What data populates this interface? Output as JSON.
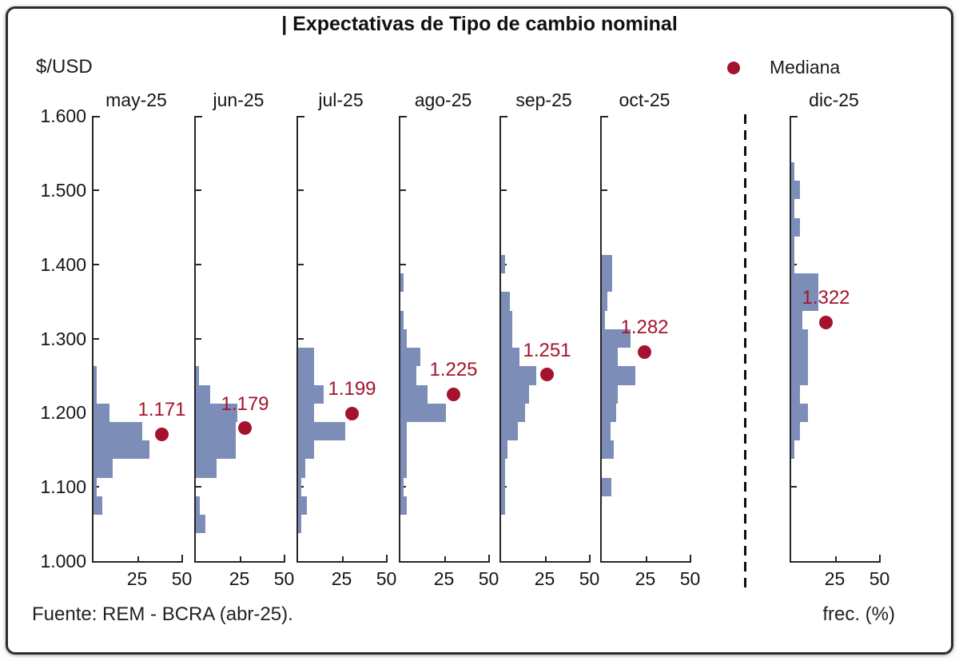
{
  "colors": {
    "bar": "#7C8DB8",
    "median": "#A5122E",
    "axis": "#262626",
    "text": "#161616"
  },
  "chart_data": {
    "type": "bar",
    "subtype": "horizontal-histogram-small-multiples",
    "title": "| Expectativas de Tipo de cambio nominal",
    "y_unit": "$/USD",
    "x_unit": "frec. (%)",
    "source": "Fuente: REM - BCRA (abr-25).",
    "legend": {
      "marker": "dot",
      "label": "Mediana"
    },
    "y_range": [
      1000,
      1600
    ],
    "y_ticks": [
      {
        "value": 1600,
        "label": "1.600"
      },
      {
        "value": 1500,
        "label": "1.500"
      },
      {
        "value": 1400,
        "label": "1.400"
      },
      {
        "value": 1300,
        "label": "1.300"
      },
      {
        "value": 1200,
        "label": "1.200"
      },
      {
        "value": 1100,
        "label": "1.100"
      },
      {
        "value": 1000,
        "label": "1.000"
      }
    ],
    "x_ticks": [
      {
        "value": 25,
        "label": "25"
      },
      {
        "value": 50,
        "label": "50"
      }
    ],
    "bin_width": 25,
    "separator_note": "dashed vertical line between oct-25 and dic-25",
    "panels": [
      {
        "label": "may-25",
        "median": 1171,
        "median_label": "1.171",
        "bins": [
          [
            1075,
            5.2
          ],
          [
            1100,
            2.2
          ],
          [
            1125,
            11.0
          ],
          [
            1150,
            31.4
          ],
          [
            1175,
            27.4
          ],
          [
            1200,
            9.3
          ],
          [
            1225,
            2.2
          ],
          [
            1250,
            2.2
          ]
        ]
      },
      {
        "label": "jun-25",
        "median": 1179,
        "median_label": "1.179",
        "bins": [
          [
            1050,
            5.7
          ],
          [
            1075,
            2.6
          ],
          [
            1125,
            12.0
          ],
          [
            1150,
            22.5
          ],
          [
            1175,
            22.5
          ],
          [
            1200,
            23.4
          ],
          [
            1225,
            8.4
          ],
          [
            1250,
            1.8
          ]
        ]
      },
      {
        "label": "jul-25",
        "median": 1199,
        "median_label": "1.199",
        "bins": [
          [
            1050,
            1.8
          ],
          [
            1075,
            5.3
          ],
          [
            1100,
            1.8
          ],
          [
            1125,
            4.4
          ],
          [
            1150,
            9.3
          ],
          [
            1175,
            26.4
          ],
          [
            1200,
            9.3
          ],
          [
            1225,
            14.5
          ],
          [
            1250,
            9.3
          ],
          [
            1275,
            9.3
          ]
        ]
      },
      {
        "label": "ago-25",
        "median": 1225,
        "median_label": "1.225",
        "bins": [
          [
            1075,
            4.0
          ],
          [
            1100,
            2.2
          ],
          [
            1125,
            4.0
          ],
          [
            1150,
            4.0
          ],
          [
            1175,
            4.0
          ],
          [
            1200,
            25.6
          ],
          [
            1225,
            15.4
          ],
          [
            1250,
            9.3
          ],
          [
            1275,
            11.5
          ],
          [
            1300,
            3.8
          ],
          [
            1325,
            2.2
          ],
          [
            1375,
            2.2
          ]
        ]
      },
      {
        "label": "sep-25",
        "median": 1251,
        "median_label": "1.251",
        "bins": [
          [
            1075,
            2.6
          ],
          [
            1100,
            2.6
          ],
          [
            1125,
            2.6
          ],
          [
            1150,
            4.0
          ],
          [
            1175,
            9.7
          ],
          [
            1200,
            13.5
          ],
          [
            1225,
            15.7
          ],
          [
            1250,
            20.0
          ],
          [
            1275,
            10.6
          ],
          [
            1300,
            6.6
          ],
          [
            1325,
            6.6
          ],
          [
            1350,
            5.3
          ],
          [
            1400,
            2.6
          ]
        ]
      },
      {
        "label": "oct-25",
        "median": 1282,
        "median_label": "1.282",
        "bins": [
          [
            1100,
            5.7
          ],
          [
            1150,
            7.0
          ],
          [
            1175,
            5.3
          ],
          [
            1200,
            8.4
          ],
          [
            1225,
            9.3
          ],
          [
            1250,
            19.0
          ],
          [
            1275,
            9.3
          ],
          [
            1300,
            16.3
          ],
          [
            1325,
            1.8
          ],
          [
            1350,
            3.5
          ],
          [
            1375,
            6.2
          ],
          [
            1400,
            6.2
          ]
        ]
      },
      {
        "label": "dic-25",
        "median": 1322,
        "median_label": "1.322",
        "bins": [
          [
            1150,
            2.2
          ],
          [
            1175,
            5.3
          ],
          [
            1200,
            9.7
          ],
          [
            1225,
            5.3
          ],
          [
            1250,
            9.7
          ],
          [
            1275,
            9.7
          ],
          [
            1300,
            9.7
          ],
          [
            1325,
            6.6
          ],
          [
            1350,
            15.4
          ],
          [
            1375,
            15.4
          ],
          [
            1400,
            2.2
          ],
          [
            1425,
            2.2
          ],
          [
            1450,
            5.3
          ],
          [
            1475,
            2.2
          ],
          [
            1500,
            5.3
          ],
          [
            1525,
            2.2
          ]
        ]
      }
    ]
  }
}
